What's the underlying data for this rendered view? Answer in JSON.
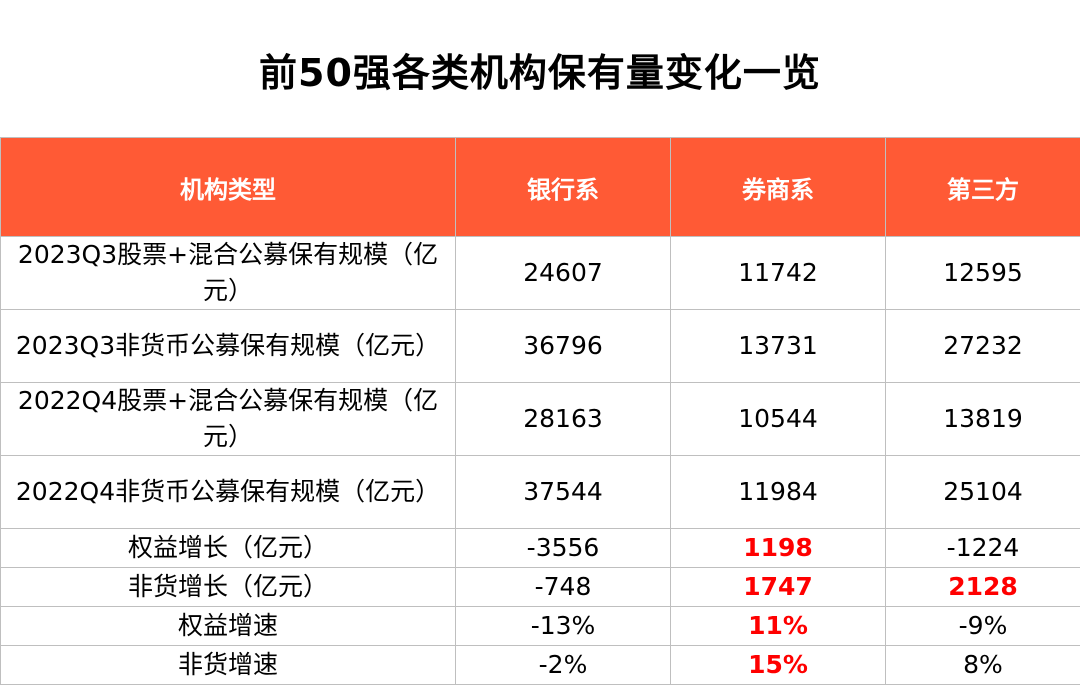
{
  "title": "前50强各类机构保有量变化一览",
  "headers": [
    "机构类型",
    "银行系",
    "券商系",
    "第三方"
  ],
  "rows": [
    {
      "label": "2023Q3股票+混合公募保有规模（亿元）",
      "bank": "24607",
      "broker": "11742",
      "third": "12595"
    },
    {
      "label": "2023Q3非货币公募保有规模（亿元）",
      "bank": "36796",
      "broker": "13731",
      "third": "27232"
    },
    {
      "label": "2022Q4股票+混合公募保有规模（亿元）",
      "bank": "28163",
      "broker": "10544",
      "third": "13819"
    },
    {
      "label": "2022Q4非货币公募保有规模（亿元）",
      "bank": "37544",
      "broker": "11984",
      "third": "25104"
    },
    {
      "label": "权益增长（亿元）",
      "bank": "-3556",
      "broker": "1198",
      "third": "-1224"
    },
    {
      "label": "非货增长（亿元）",
      "bank": "-748",
      "broker": "1747",
      "third": "2128"
    },
    {
      "label": "权益增速",
      "bank": "-13%",
      "broker": "11%",
      "third": "-9%"
    },
    {
      "label": "非货增速",
      "bank": "-2%",
      "broker": "15%",
      "third": "8%"
    }
  ],
  "colors": {
    "header_bg": "#ff5a35",
    "header_text": "#ffffff",
    "highlight_text": "#ff0000",
    "border": "#bfbfbf"
  }
}
